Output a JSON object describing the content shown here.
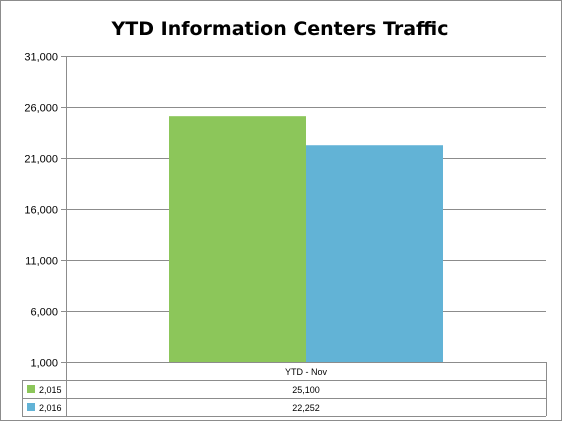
{
  "chart_data": {
    "type": "bar",
    "title": "YTD Information Centers Traffic",
    "categories": [
      "YTD - Nov"
    ],
    "series": [
      {
        "name": "2,015",
        "values": [
          25100
        ],
        "value_labels": [
          "25,100"
        ],
        "color": "#8cc65a"
      },
      {
        "name": "2,016",
        "values": [
          22252
        ],
        "value_labels": [
          "22,252"
        ],
        "color": "#62b3d6"
      }
    ],
    "ylim": [
      1000,
      31000
    ],
    "yticks": [
      1000,
      6000,
      11000,
      16000,
      21000,
      26000,
      31000
    ],
    "ytick_labels": [
      "1,000",
      "6,000",
      "11,000",
      "16,000",
      "21,000",
      "26,000",
      "31,000"
    ],
    "xlabel": "",
    "ylabel": "",
    "grid": true,
    "legend": "data-table"
  }
}
